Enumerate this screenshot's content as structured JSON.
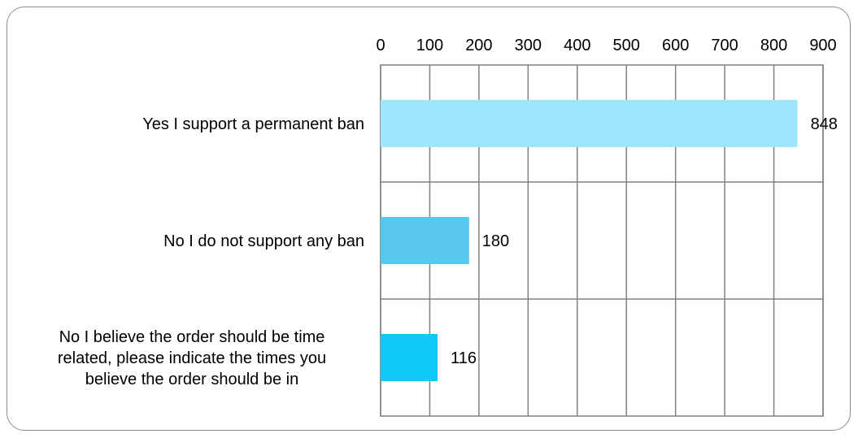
{
  "chart_data": {
    "type": "bar",
    "orientation": "horizontal",
    "categories": [
      "Yes I support a permanent ban",
      "No I do not support any ban",
      "No I believe the order should be time related, please indicate the times you believe the order should be in"
    ],
    "category_lines": [
      [
        "Yes I support a permanent ban"
      ],
      [
        "No I do not support any ban"
      ],
      [
        "No I believe the order should be time",
        "related, please indicate the times you",
        "believe the order should be in"
      ]
    ],
    "values": [
      848,
      180,
      116
    ],
    "data_labels": [
      "848",
      "180",
      "116"
    ],
    "bar_colors": [
      "#9de6fb",
      "#56c8ef",
      "#0dc9f5"
    ],
    "xlim": [
      0,
      900
    ],
    "x_ticks": [
      0,
      100,
      200,
      300,
      400,
      500,
      600,
      700,
      800,
      900
    ],
    "x_tick_labels": [
      "0",
      "100",
      "200",
      "300",
      "400",
      "500",
      "600",
      "700",
      "800",
      "900"
    ],
    "x_axis_position": "top",
    "grid": true,
    "legend": false,
    "title": "",
    "xlabel": "",
    "ylabel": ""
  }
}
